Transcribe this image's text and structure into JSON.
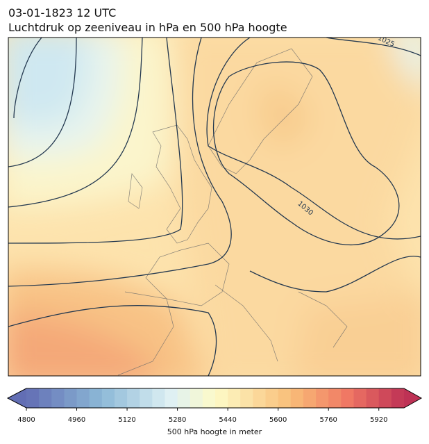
{
  "header": {
    "date": "03-01-1823 12 UTC",
    "title": "Luchtdruk op zeeniveau in hPa en 500 hPa hoogte"
  },
  "map": {
    "contour_labels": [
      "1025",
      "1030"
    ]
  },
  "colorbar": {
    "lim": [
      4800,
      6000
    ],
    "ticks": [
      4800,
      4960,
      5120,
      5280,
      5440,
      5600,
      5760,
      5920
    ],
    "label": "500 hPa hoogte in meter"
  }
}
